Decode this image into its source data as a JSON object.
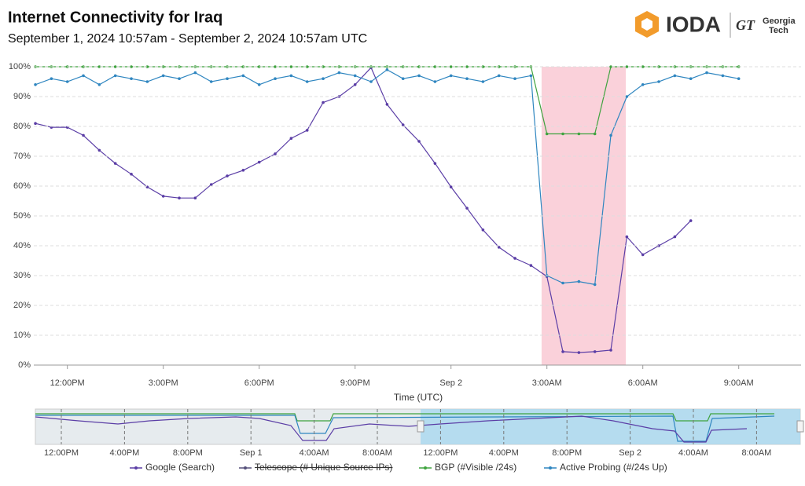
{
  "header": {
    "logo": "IODA",
    "partner_mark": "GT",
    "partner": [
      "Georgia",
      "Tech"
    ]
  },
  "chart_data": {
    "type": "line",
    "title": "Internet Connectivity for  Iraq",
    "subtitle": "September 1, 2024 10:57am - September 2, 2024 10:57am UTC",
    "x_label": "Time (UTC)",
    "xlim": [
      "2024-09-01T10:57",
      "2024-09-02T10:57"
    ],
    "xticks": [
      {
        "value": "2024-09-01T12:00",
        "label": "12:00PM"
      },
      {
        "value": "2024-09-01T15:00",
        "label": "3:00PM"
      },
      {
        "value": "2024-09-01T18:00",
        "label": "6:00PM"
      },
      {
        "value": "2024-09-01T21:00",
        "label": "9:00PM"
      },
      {
        "value": "2024-09-02T00:00",
        "label": "Sep 2"
      },
      {
        "value": "2024-09-02T03:00",
        "label": "3:00AM"
      },
      {
        "value": "2024-09-02T06:00",
        "label": "6:00AM"
      },
      {
        "value": "2024-09-02T09:00",
        "label": "9:00AM"
      }
    ],
    "ylim": [
      0,
      100
    ],
    "yticks": [
      {
        "value": 0,
        "label": "0%"
      },
      {
        "value": 10,
        "label": "10%"
      },
      {
        "value": 20,
        "label": "20%"
      },
      {
        "value": 30,
        "label": "30%"
      },
      {
        "value": 40,
        "label": "40%"
      },
      {
        "value": 50,
        "label": "50%"
      },
      {
        "value": 60,
        "label": "60%"
      },
      {
        "value": 70,
        "label": "70%"
      },
      {
        "value": 80,
        "label": "80%"
      },
      {
        "value": 90,
        "label": "90%"
      },
      {
        "value": 100,
        "label": "100%"
      }
    ],
    "grid": true,
    "outage": [
      "2024-09-02T02:50",
      "2024-09-02T05:28"
    ],
    "x": [
      "2024-09-01T11:00",
      "2024-09-01T11:30",
      "2024-09-01T12:00",
      "2024-09-01T12:30",
      "2024-09-01T13:00",
      "2024-09-01T13:30",
      "2024-09-01T14:00",
      "2024-09-01T14:30",
      "2024-09-01T15:00",
      "2024-09-01T15:30",
      "2024-09-01T16:00",
      "2024-09-01T16:30",
      "2024-09-01T17:00",
      "2024-09-01T17:30",
      "2024-09-01T18:00",
      "2024-09-01T18:30",
      "2024-09-01T19:00",
      "2024-09-01T19:30",
      "2024-09-01T20:00",
      "2024-09-01T20:30",
      "2024-09-01T21:00",
      "2024-09-01T21:30",
      "2024-09-01T22:00",
      "2024-09-01T22:30",
      "2024-09-01T23:00",
      "2024-09-01T23:30",
      "2024-09-02T00:00",
      "2024-09-02T00:30",
      "2024-09-02T01:00",
      "2024-09-02T01:30",
      "2024-09-02T02:00",
      "2024-09-02T02:30",
      "2024-09-02T03:00",
      "2024-09-02T03:30",
      "2024-09-02T04:00",
      "2024-09-02T04:30",
      "2024-09-02T05:00",
      "2024-09-02T05:30",
      "2024-09-02T06:00",
      "2024-09-02T06:30",
      "2024-09-02T07:00",
      "2024-09-02T07:30",
      "2024-09-02T08:00",
      "2024-09-02T08:30",
      "2024-09-02T09:00"
    ],
    "series": [
      {
        "name": "Google (Search)",
        "color": "#5b3ea6",
        "values": [
          81,
          79.7,
          79.7,
          77,
          72,
          67.6,
          64,
          59.7,
          56.6,
          56,
          56,
          60.5,
          63.4,
          65.3,
          68,
          70.8,
          76,
          78.7,
          88,
          90,
          94,
          99.7,
          87.4,
          80.5,
          75,
          67.6,
          59.7,
          52.6,
          45.3,
          39.5,
          35.8,
          33.4,
          29.7,
          4.5,
          4.2,
          4.5,
          5,
          43,
          37,
          40,
          43,
          48.4,
          null,
          null,
          null
        ]
      },
      {
        "name": "Telescope (# Unique Source IPs)",
        "color": "#55507a",
        "visible": false
      },
      {
        "name": "BGP (#Visible /24s)",
        "color": "#3fa33f",
        "values": [
          100,
          100,
          100,
          100,
          100,
          100,
          100,
          100,
          100,
          100,
          100,
          100,
          100,
          100,
          100,
          100,
          100,
          100,
          100,
          100,
          100,
          100,
          100,
          100,
          100,
          100,
          100,
          100,
          100,
          100,
          100,
          100,
          77.5,
          77.5,
          77.5,
          77.5,
          100,
          100,
          100,
          100,
          100,
          100,
          100,
          100,
          100
        ]
      },
      {
        "name": "Active Probing (#/24s Up)",
        "color": "#2f86c0",
        "values": [
          94,
          96,
          95,
          97,
          94,
          97,
          96,
          95,
          97,
          96,
          98,
          95,
          96,
          97,
          94,
          96,
          97,
          95,
          96,
          98,
          97,
          95,
          99,
          96,
          97,
          95,
          97,
          96,
          95,
          97,
          96,
          97,
          30,
          27.5,
          28,
          27,
          77,
          90,
          94,
          95,
          97,
          96,
          98,
          97,
          96
        ]
      }
    ],
    "navigator_ticks": [
      "12:00PM",
      "4:00PM",
      "8:00PM",
      "Sep 1",
      "4:00AM",
      "8:00AM",
      "12:00PM",
      "4:00PM",
      "8:00PM",
      "Sep 2",
      "4:00AM",
      "8:00AM"
    ]
  }
}
